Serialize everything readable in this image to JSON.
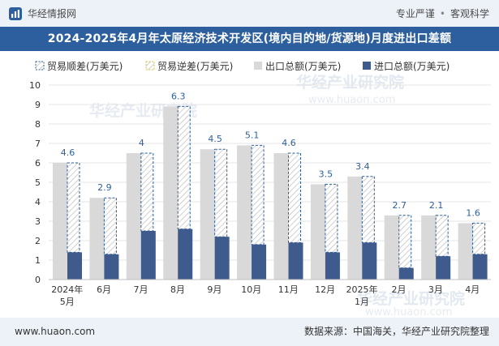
{
  "header": {
    "brand": "华经情报网",
    "right_items": [
      "专业严谨",
      "客观科学"
    ],
    "separator": "•"
  },
  "title": "2024-2025年4月年太原经济技术开发区(境内目的地/货源地)月度进出口差额",
  "watermarks": [
    "华经产业研究院",
    "www.huaon.com"
  ],
  "footer": {
    "website": "www.huaon.com",
    "source": "数据来源：中国海关，华经产业研究院整理"
  },
  "colors": {
    "export": "#d9d9d9",
    "import": "#3f5b8e",
    "surplus_border": "#2d5f9e",
    "title_bg": "#2d5f9e",
    "band_bg": "#edf2f8"
  },
  "chart_data": {
    "type": "bar",
    "title": "2024-2025年4月年太原经济技术开发区(境内目的地/货源地)月度进出口差额",
    "categories": [
      [
        "2024年",
        "5月"
      ],
      [
        "6月"
      ],
      [
        "7月"
      ],
      [
        "8月"
      ],
      [
        "9月"
      ],
      [
        "10月"
      ],
      [
        "11月"
      ],
      [
        "12月"
      ],
      [
        "2025年",
        "1月"
      ],
      [
        "2月"
      ],
      [
        "3月"
      ],
      [
        "4月"
      ]
    ],
    "legend": [
      {
        "key": "surplus",
        "label": "贸易顺差(万美元)"
      },
      {
        "key": "deficit",
        "label": "贸易逆差(万美元)"
      },
      {
        "key": "export",
        "label": "出口总额(万美元)"
      },
      {
        "key": "import",
        "label": "进口总额(万美元)"
      }
    ],
    "series": [
      {
        "name": "出口总额(万美元)",
        "key": "export",
        "values": [
          6.0,
          4.2,
          6.5,
          8.9,
          6.7,
          6.9,
          6.5,
          4.9,
          5.3,
          3.3,
          3.3,
          2.9
        ]
      },
      {
        "name": "进口总额(万美元)",
        "key": "import",
        "values": [
          1.4,
          1.3,
          2.5,
          2.6,
          2.2,
          1.8,
          1.9,
          1.4,
          1.9,
          0.6,
          1.2,
          1.3
        ]
      },
      {
        "name": "贸易顺差(万美元)",
        "key": "surplus",
        "values": [
          4.6,
          2.9,
          4.0,
          6.3,
          4.5,
          5.1,
          4.6,
          3.5,
          3.4,
          2.7,
          2.1,
          1.6
        ]
      }
    ],
    "surplus_labels": [
      "4.6",
      "2.9",
      "4",
      "6.3",
      "4.5",
      "5.1",
      "4.6",
      "3.5",
      "3.4",
      "2.7",
      "2.1",
      "1.6"
    ],
    "ylim": [
      0,
      10
    ],
    "yticks": [
      0,
      1,
      2,
      3,
      4,
      5,
      6,
      7,
      8,
      9,
      10
    ],
    "xlabel": "",
    "ylabel": "",
    "grid": true,
    "legend_position": "top-left"
  }
}
